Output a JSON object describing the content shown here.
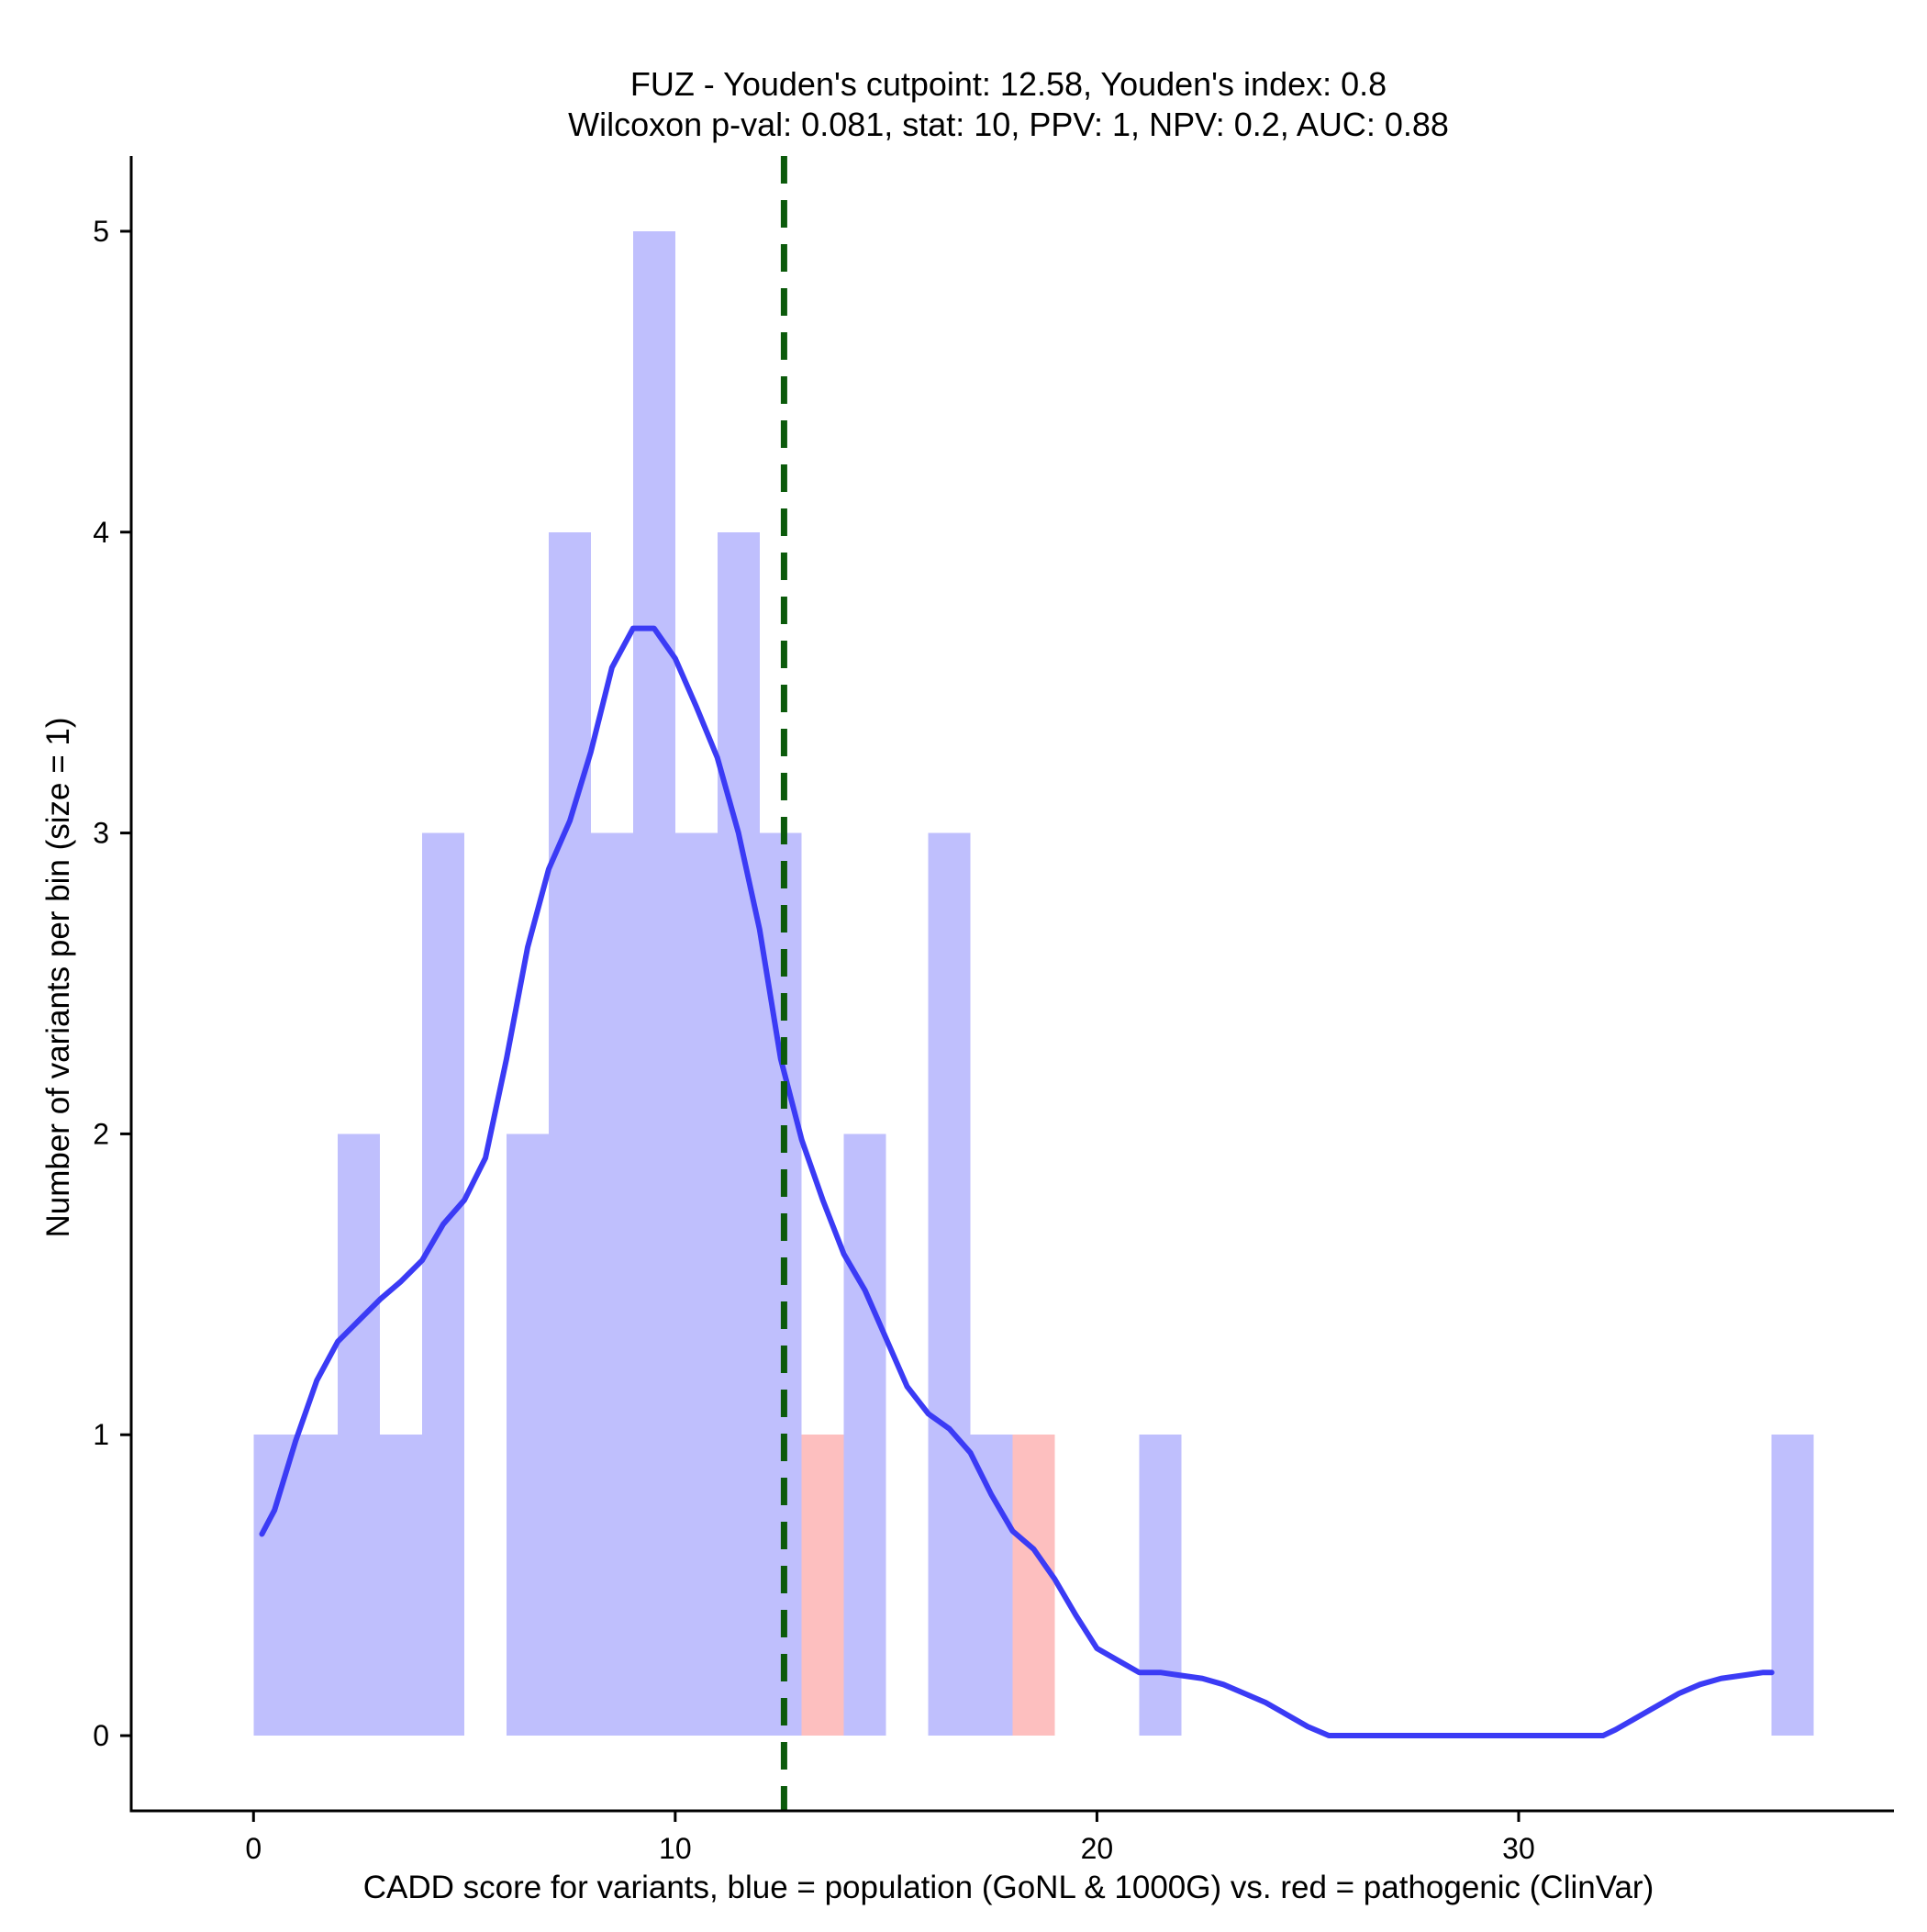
{
  "chart_data": {
    "type": "histogram",
    "title_line1": "FUZ - Youden's cutpoint: 12.58, Youden's index: 0.8",
    "title_line2": "Wilcoxon p-val: 0.081, stat: 10, PPV: 1, NPV: 0.2, AUC: 0.88",
    "xlabel": "CADD score for variants, blue = population (GoNL & 1000G) vs. red = pathogenic (ClinVar)",
    "ylabel": "Number of variants per bin (size = 1)",
    "xlim": [
      -2.9,
      38.9
    ],
    "ylim": [
      -0.25,
      5.25
    ],
    "x_ticks": [
      0,
      10,
      20,
      30
    ],
    "x_tick_labels": [
      "0",
      "10",
      "20",
      "30"
    ],
    "y_ticks": [
      0,
      1,
      2,
      3,
      4,
      5
    ],
    "y_tick_labels": [
      "0",
      "1",
      "2",
      "3",
      "4",
      "5"
    ],
    "cutpoint": 12.58,
    "series": [
      {
        "name": "population",
        "color": "#bfbffd",
        "bins": [
          {
            "x0": 0,
            "x1": 1,
            "count": 1
          },
          {
            "x0": 1,
            "x1": 2,
            "count": 1
          },
          {
            "x0": 2,
            "x1": 3,
            "count": 2
          },
          {
            "x0": 3,
            "x1": 4,
            "count": 1
          },
          {
            "x0": 4,
            "x1": 5,
            "count": 3
          },
          {
            "x0": 6,
            "x1": 7,
            "count": 2
          },
          {
            "x0": 7,
            "x1": 8,
            "count": 4
          },
          {
            "x0": 8,
            "x1": 9,
            "count": 3
          },
          {
            "x0": 9,
            "x1": 10,
            "count": 5
          },
          {
            "x0": 10,
            "x1": 11,
            "count": 3
          },
          {
            "x0": 11,
            "x1": 12,
            "count": 4
          },
          {
            "x0": 12,
            "x1": 13,
            "count": 3
          },
          {
            "x0": 14,
            "x1": 15,
            "count": 2
          },
          {
            "x0": 16,
            "x1": 17,
            "count": 3
          },
          {
            "x0": 17,
            "x1": 18,
            "count": 1
          },
          {
            "x0": 21,
            "x1": 22,
            "count": 1
          },
          {
            "x0": 36,
            "x1": 37,
            "count": 1
          }
        ]
      },
      {
        "name": "pathogenic",
        "color": "#fdbfbf",
        "bins": [
          {
            "x0": 13,
            "x1": 14,
            "count": 1
          },
          {
            "x0": 18,
            "x1": 19,
            "count": 1
          }
        ]
      }
    ],
    "density_curve": {
      "name": "population density",
      "color": "#3b3bf5",
      "x": [
        0.2,
        0.5,
        1.0,
        1.5,
        2.0,
        2.5,
        3.0,
        3.5,
        4.0,
        4.5,
        5.0,
        5.5,
        6.0,
        6.5,
        7.0,
        7.5,
        8.0,
        8.5,
        9.0,
        9.5,
        10.0,
        10.5,
        11.0,
        11.5,
        12.0,
        12.5,
        13.0,
        13.5,
        14.0,
        14.5,
        15.0,
        15.5,
        16.0,
        16.5,
        17.0,
        17.5,
        18.0,
        18.5,
        19.0,
        19.5,
        20.0,
        20.5,
        21.0,
        21.5,
        22.0,
        22.5,
        23.0,
        23.5,
        24.0,
        24.5,
        25.0,
        25.5,
        26.0,
        28.0,
        30.0,
        32.0,
        32.3,
        32.8,
        33.3,
        33.8,
        34.3,
        34.8,
        35.3,
        35.8,
        36.0
      ],
      "y": [
        0.67,
        0.75,
        0.98,
        1.18,
        1.31,
        1.38,
        1.45,
        1.51,
        1.58,
        1.7,
        1.78,
        1.92,
        2.25,
        2.62,
        2.88,
        3.04,
        3.27,
        3.55,
        3.68,
        3.68,
        3.58,
        3.42,
        3.25,
        3.0,
        2.68,
        2.25,
        1.98,
        1.78,
        1.6,
        1.48,
        1.32,
        1.16,
        1.07,
        1.02,
        0.94,
        0.8,
        0.68,
        0.62,
        0.52,
        0.4,
        0.29,
        0.25,
        0.21,
        0.21,
        0.2,
        0.19,
        0.17,
        0.14,
        0.11,
        0.07,
        0.03,
        0.0,
        0.0,
        0.0,
        0.0,
        0.0,
        0.02,
        0.06,
        0.1,
        0.14,
        0.17,
        0.19,
        0.2,
        0.21,
        0.21
      ]
    },
    "colors": {
      "cutpoint_line": "#0b5a0b",
      "axis": "#000000"
    }
  }
}
